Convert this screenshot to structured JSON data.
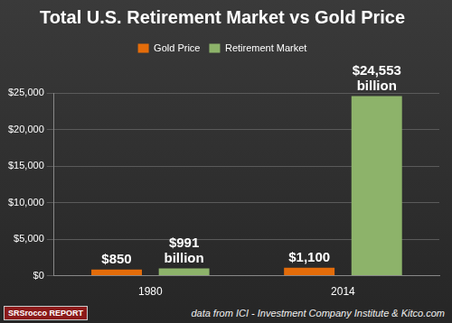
{
  "chart_data": {
    "type": "bar",
    "title": "Total U.S. Retirement Market vs Gold Price",
    "categories": [
      "1980",
      "2014"
    ],
    "series": [
      {
        "name": "Gold Price",
        "color": "#e46c0a",
        "values": [
          850,
          1100
        ],
        "value_labels": [
          "$850",
          "$1,100"
        ]
      },
      {
        "name": "Retirement Market",
        "color": "#8db36a",
        "values": [
          991,
          24553
        ],
        "value_labels": [
          "$991 billion",
          "$24,553 billion"
        ]
      }
    ],
    "ylim": [
      0,
      25000
    ],
    "yticks": [
      {
        "value": 0,
        "label": "$0"
      },
      {
        "value": 5000,
        "label": "$5,000"
      },
      {
        "value": 10000,
        "label": "$10,000"
      },
      {
        "value": 15000,
        "label": "$15,000"
      },
      {
        "value": 20000,
        "label": "$20,000"
      },
      {
        "value": 25000,
        "label": "$25,000"
      }
    ],
    "grid": true,
    "legend": "top",
    "data_labels": true,
    "annotations": [
      "data from ICI - Investment Company Institute & Kitco.com",
      "SRSrocco REPORT"
    ]
  }
}
